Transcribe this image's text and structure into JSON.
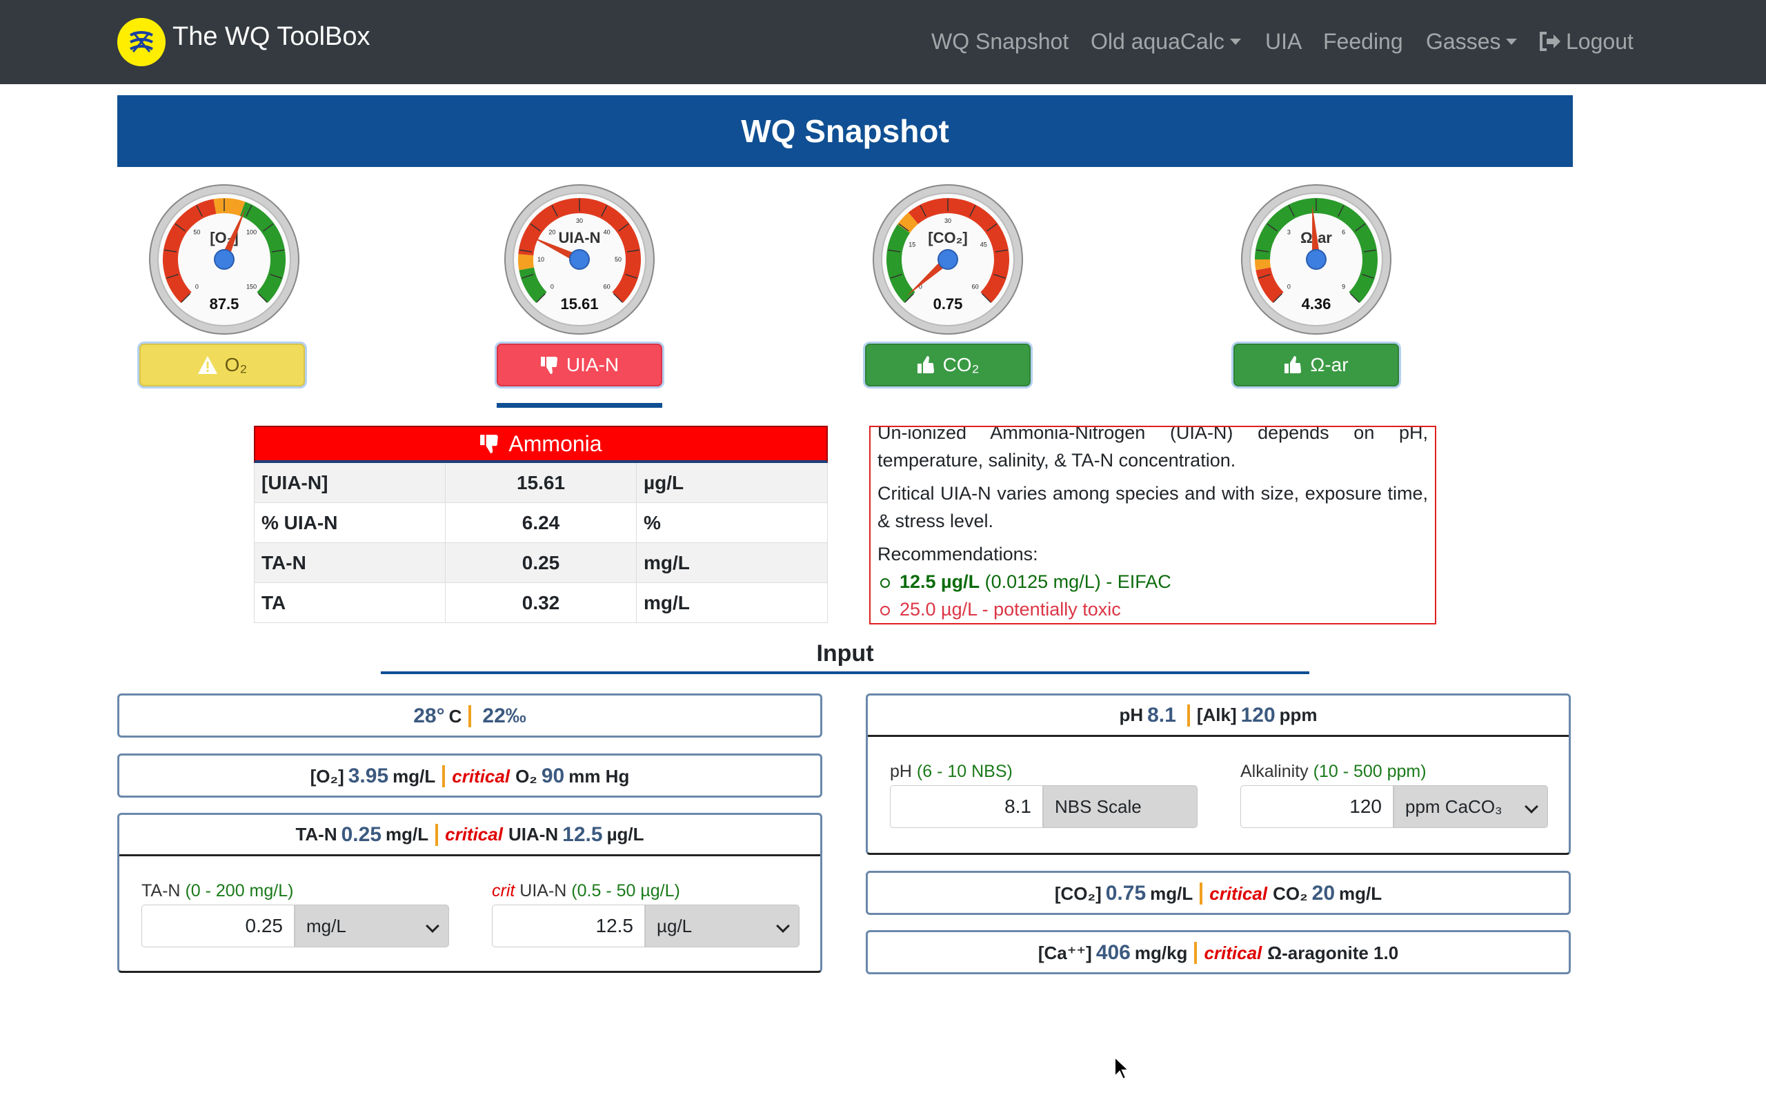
{
  "nav": {
    "brand": "The WQ ToolBox",
    "items": [
      {
        "label": "WQ Snapshot"
      },
      {
        "label": "Old aquaCalc"
      },
      {
        "label": "UIA"
      },
      {
        "label": "Feeding"
      },
      {
        "label": "Gasses"
      },
      {
        "label": "Logout"
      }
    ]
  },
  "page_title": "WQ Snapshot",
  "gauges": [
    {
      "label": "[O₂]",
      "value": "87.5",
      "ticks": [
        "0",
        "50",
        "100",
        "150"
      ],
      "level": 87.5,
      "button": "O₂",
      "status": "warning",
      "color": "#f0dc5a"
    },
    {
      "label": "UIA-N",
      "value": "15.61",
      "ticks": [
        "0",
        "10",
        "20",
        "30",
        "40",
        "50",
        "60"
      ],
      "level": 15.61,
      "button": "UIA-N",
      "status": "bad",
      "color": "#f54a5a"
    },
    {
      "label": "[CO₂]",
      "value": "0.75",
      "ticks": [
        "0",
        "15",
        "30",
        "45",
        "60"
      ],
      "level": 0.75,
      "button": "CO₂",
      "status": "good",
      "color": "#3a9a44"
    },
    {
      "label": "Ω-ar",
      "value": "4.36",
      "ticks": [
        "0",
        "3",
        "6",
        "9"
      ],
      "level": 4.36,
      "button": "Ω-ar",
      "status": "good",
      "color": "#3a9a44"
    }
  ],
  "ammonia": {
    "header": "Ammonia",
    "rows": [
      {
        "name": "[UIA-N]",
        "value": "15.61",
        "unit": "µg/L"
      },
      {
        "name": "% UIA-N",
        "value": "6.24",
        "unit": "%"
      },
      {
        "name": "TA-N",
        "value": "0.25",
        "unit": "mg/L"
      },
      {
        "name": "TA",
        "value": "0.32",
        "unit": "mg/L"
      }
    ]
  },
  "info": {
    "p1": "Un-ionized Ammonia-Nitrogen (UIA-N) depends on pH, temperature, salinity, & TA-N concentration.",
    "p2": "Critical UIA-N varies among species and with size, exposure time, & stress level.",
    "rec_label": "Recommendations:",
    "rec1_bold": "12.5 µg/L",
    "rec1_rest": " (0.0125 mg/L) - EIFAC",
    "rec2": "25.0 µg/L - potentially toxic"
  },
  "input_title": "Input",
  "temp_card": {
    "temp": "28°",
    "temp_unit": "C",
    "sal": "22‰"
  },
  "o2_card": {
    "label": "[O₂]",
    "value": "3.95",
    "unit": "mg/L",
    "crit": "critical",
    "crit_label": "O₂",
    "crit_value": "90",
    "crit_unit": "mm Hg"
  },
  "tan_card": {
    "label": "TA-N",
    "value": "0.25",
    "unit": "mg/L",
    "crit": "critical",
    "crit_label": "UIA-N",
    "crit_value": "12.5",
    "crit_unit": "µg/L",
    "field1_label": "TA-N",
    "field1_range": "(0 - 200 mg/L)",
    "field1_value": "0.25",
    "field1_unit": "mg/L",
    "field2_crit": "crit",
    "field2_label": "UIA-N",
    "field2_range": "(0.5 - 50 µg/L)",
    "field2_value": "12.5",
    "field2_unit": "µg/L"
  },
  "ph_card": {
    "ph_label": "pH",
    "ph_value": "8.1",
    "alk_label": "[Alk]",
    "alk_value": "120",
    "alk_unit": "ppm",
    "field1_label": "pH",
    "field1_range": "(6 - 10 NBS)",
    "field1_value": "8.1",
    "field1_unit": "NBS Scale",
    "field2_label": "Alkalinity",
    "field2_range": "(10 - 500 ppm)",
    "field2_value": "120",
    "field2_unit": "ppm CaCO₃"
  },
  "co2_card": {
    "label": "[CO₂]",
    "value": "0.75",
    "unit": "mg/L",
    "crit": "critical",
    "crit_label": "CO₂",
    "crit_value": "20",
    "crit_unit": "mg/L"
  },
  "ca_card": {
    "label": "[Ca⁺⁺]",
    "value": "406",
    "unit": "mg/kg",
    "crit": "critical",
    "crit_label": "Ω-aragonite 1.0"
  }
}
